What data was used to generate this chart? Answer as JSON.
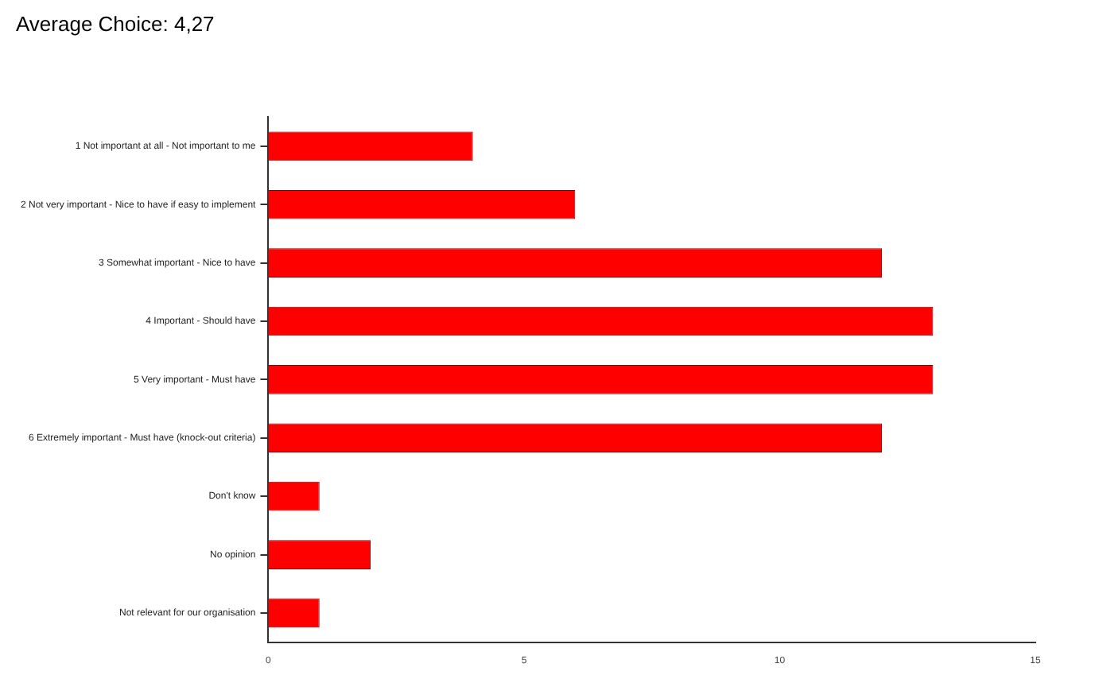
{
  "chart_data": {
    "type": "bar",
    "orientation": "horizontal",
    "title": "Average Choice: 4,27",
    "categories": [
      "1 Not important at all - Not important to me",
      "2 Not very important - Nice to have if easy to implement",
      "3 Somewhat important - Nice to have",
      "4 Important - Should have",
      "5 Very important - Must have",
      "6 Extremely important - Must have (knock-out criteria)",
      "Don't know",
      "No opinion",
      "Not relevant for our organisation"
    ],
    "values": [
      4,
      6,
      12,
      13,
      13,
      12,
      1,
      2,
      1
    ],
    "color": "#ff0000",
    "xlim": [
      0,
      15
    ],
    "xticks": [
      0,
      5,
      10,
      15
    ],
    "grid": false,
    "legend": false
  }
}
